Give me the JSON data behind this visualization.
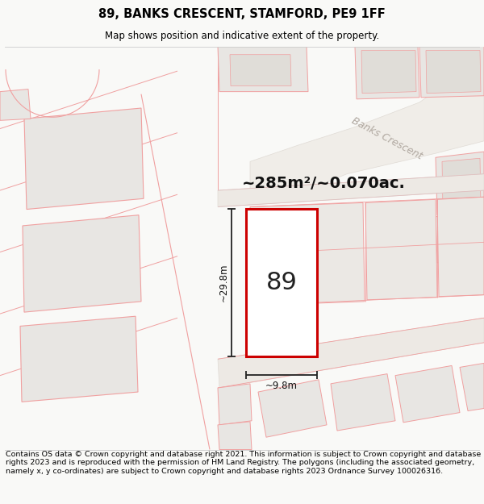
{
  "title_line1": "89, BANKS CRESCENT, STAMFORD, PE9 1FF",
  "title_line2": "Map shows position and indicative extent of the property.",
  "footer_text": "Contains OS data © Crown copyright and database right 2021. This information is subject to Crown copyright and database rights 2023 and is reproduced with the permission of HM Land Registry. The polygons (including the associated geometry, namely x, y co-ordinates) are subject to Crown copyright and database rights 2023 Ordnance Survey 100026316.",
  "area_label": "~285m²/~0.070ac.",
  "width_label": "~9.8m",
  "height_label": "~29.8m",
  "property_number": "89",
  "road_label": "Banks Crescent",
  "bg_color": "#f9f9f7",
  "map_bg": "#f9f9f7",
  "plot_fill": "#ffffff",
  "plot_border": "#cc0000",
  "other_fill": "#e8e6e3",
  "other_border": "#f0a0a0",
  "road_label_color": "#b0a8a0",
  "title_fontsize": 10.5,
  "subtitle_fontsize": 8.5,
  "footer_fontsize": 6.8,
  "area_fontsize": 14,
  "dim_fontsize": 8.5,
  "num_fontsize": 22
}
